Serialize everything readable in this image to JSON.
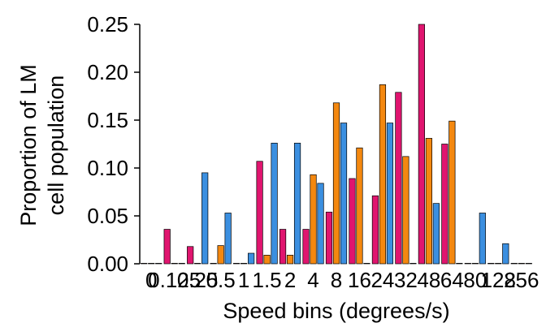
{
  "chart_data": {
    "type": "bar",
    "xlabel": "Speed bins (degrees/s)",
    "ylabel_lines": [
      "Proportion of LM",
      "cell population"
    ],
    "ylim": [
      0,
      0.25
    ],
    "yticks": [
      "0.00",
      "0.05",
      "0.10",
      "0.15",
      "0.20",
      "0.25"
    ],
    "categories": [
      "0",
      "0.125",
      "0.25",
      "0.5",
      "1",
      "1.5",
      "2",
      "4",
      "8",
      "16",
      "24",
      "32",
      "48",
      "64",
      "80",
      "128",
      "256"
    ],
    "tick_labels": [
      "0",
      "0.125",
      "0.25",
      "0.5",
      "1",
      "1.5",
      "2",
      "4",
      "8",
      "16",
      "24",
      "32",
      "48",
      "64",
      "80",
      "128",
      "256"
    ],
    "colors": [
      "#e0156f",
      "#f4880f",
      "#3b8fe0"
    ],
    "series": [
      {
        "values": [
          0.0,
          0.036,
          0.018,
          0.0,
          0.0,
          0.107,
          0.036,
          0.036,
          0.054,
          0.089,
          0.071,
          0.179,
          0.25,
          0.125,
          0.0,
          0.0,
          0.0
        ]
      },
      {
        "values": [
          0.0,
          0.0,
          0.0,
          0.019,
          0.0,
          0.009,
          0.009,
          0.093,
          0.168,
          0.121,
          0.187,
          0.112,
          0.131,
          0.149,
          0.0,
          0.0,
          0.0
        ]
      },
      {
        "values": [
          0.0,
          0.0,
          0.095,
          0.053,
          0.011,
          0.126,
          0.126,
          0.084,
          0.147,
          0.0,
          0.147,
          0.0,
          0.063,
          0.0,
          0.053,
          0.021,
          0.0
        ]
      }
    ]
  }
}
